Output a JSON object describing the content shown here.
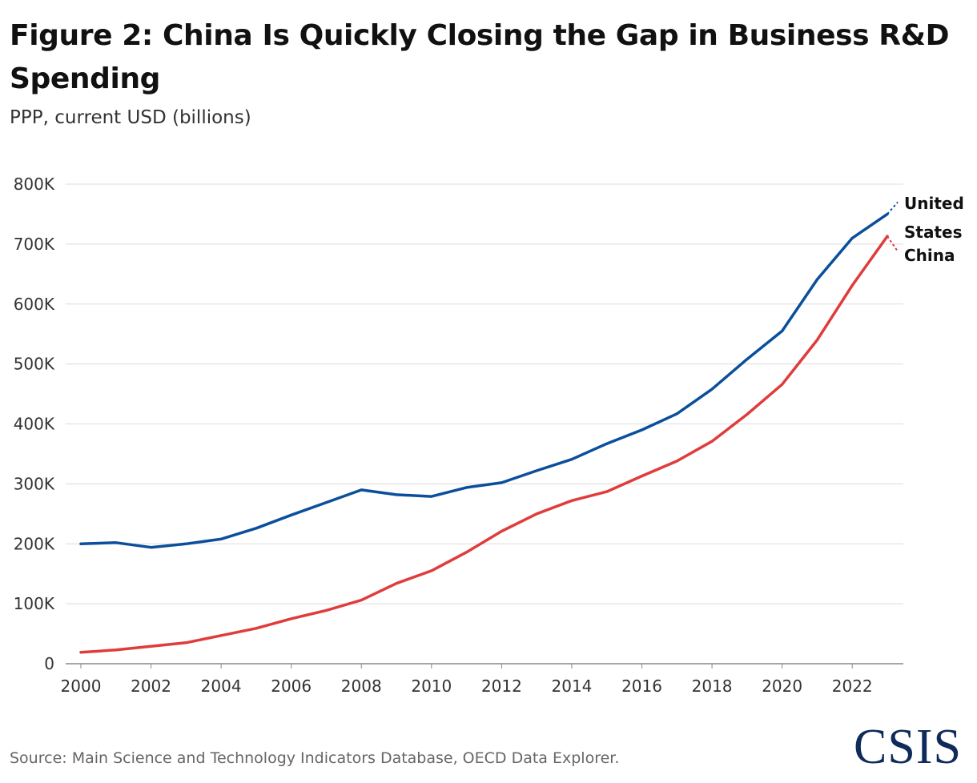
{
  "header": {
    "title": "Figure 2: China Is Quickly Closing the Gap in Business R&D Spending",
    "subtitle": "PPP, current USD (billions)"
  },
  "footer": {
    "source": "Source: Main Science and Technology Indicators Database, OECD Data Explorer.",
    "logo": "CSIS"
  },
  "chart_data": {
    "type": "line",
    "title": "Figure 2: China Is Quickly Closing the Gap in Business R&D Spending",
    "subtitle": "PPP, current USD (billions)",
    "xlabel": "",
    "ylabel": "",
    "x": [
      2000,
      2001,
      2002,
      2003,
      2004,
      2005,
      2006,
      2007,
      2008,
      2009,
      2010,
      2011,
      2012,
      2013,
      2014,
      2015,
      2016,
      2017,
      2018,
      2019,
      2020,
      2021,
      2022,
      2023
    ],
    "xlim": [
      2000,
      2023.5
    ],
    "ylim": [
      0,
      800000
    ],
    "x_ticks": [
      2000,
      2002,
      2004,
      2006,
      2008,
      2010,
      2012,
      2014,
      2016,
      2018,
      2020,
      2022
    ],
    "y_ticks": [
      0,
      100000,
      200000,
      300000,
      400000,
      500000,
      600000,
      700000,
      800000
    ],
    "y_tick_labels": [
      "0",
      "100K",
      "200K",
      "300K",
      "400K",
      "500K",
      "600K",
      "700K",
      "800K"
    ],
    "grid": true,
    "legend": "direct labels at line ends",
    "series": [
      {
        "name": "United States",
        "label_lines": [
          "United",
          "States"
        ],
        "color": "#0b4f9c",
        "values": [
          200000,
          202000,
          194000,
          200000,
          208000,
          226000,
          248000,
          269000,
          290000,
          282000,
          279000,
          294000,
          302000,
          322000,
          341000,
          367000,
          390000,
          417000,
          458000,
          508000,
          555000,
          641000,
          710000,
          750000
        ],
        "projection": [
          750000,
          770000
        ]
      },
      {
        "name": "China",
        "label_lines": [
          "China"
        ],
        "color": "#e03c3c",
        "values": [
          19000,
          23000,
          29000,
          35000,
          47000,
          59000,
          75000,
          89000,
          106000,
          134000,
          155000,
          186000,
          221000,
          250000,
          272000,
          287000,
          313000,
          338000,
          371000,
          416000,
          466000,
          540000,
          631000,
          713000
        ],
        "projection": [
          713000,
          688000
        ]
      }
    ]
  }
}
